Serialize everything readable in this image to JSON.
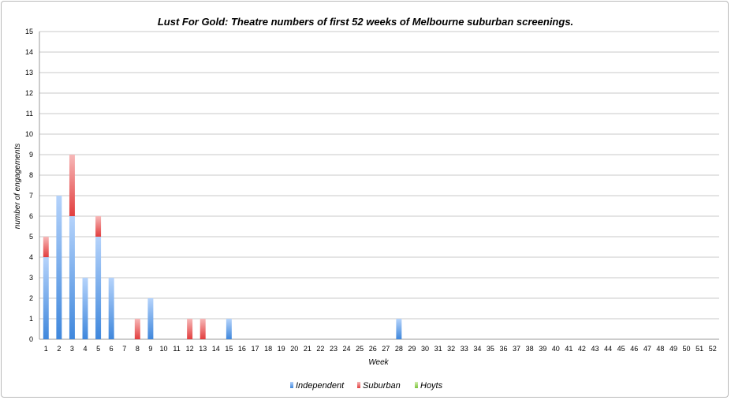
{
  "chart_data": {
    "type": "bar",
    "stacked": true,
    "title": "Lust For Gold: Theatre numbers of first 52 weeks of Melbourne suburban screenings.",
    "xlabel": "Week",
    "ylabel": "number of engagements",
    "ylim": [
      0,
      15
    ],
    "yticks": [
      0,
      1,
      2,
      3,
      4,
      5,
      6,
      7,
      8,
      9,
      10,
      11,
      12,
      13,
      14,
      15
    ],
    "grid": true,
    "legend_position": "bottom",
    "categories": [
      "1",
      "2",
      "3",
      "4",
      "5",
      "6",
      "7",
      "8",
      "9",
      "10",
      "11",
      "12",
      "13",
      "14",
      "15",
      "16",
      "17",
      "18",
      "19",
      "20",
      "21",
      "22",
      "23",
      "24",
      "25",
      "26",
      "27",
      "28",
      "29",
      "30",
      "31",
      "32",
      "33",
      "34",
      "35",
      "36",
      "37",
      "38",
      "39",
      "40",
      "41",
      "42",
      "43",
      "44",
      "45",
      "46",
      "47",
      "48",
      "49",
      "50",
      "51",
      "52"
    ],
    "series": [
      {
        "name": "Independent",
        "color": "#4a8fe0",
        "values": [
          4,
          7,
          6,
          3,
          5,
          3,
          0,
          0,
          2,
          0,
          0,
          0,
          0,
          0,
          1,
          0,
          0,
          0,
          0,
          0,
          0,
          0,
          0,
          0,
          0,
          0,
          0,
          1,
          0,
          0,
          0,
          0,
          0,
          0,
          0,
          0,
          0,
          0,
          0,
          0,
          0,
          0,
          0,
          0,
          0,
          0,
          0,
          0,
          0,
          0,
          0,
          0
        ]
      },
      {
        "name": "Suburban",
        "color": "#e84c4c",
        "values": [
          1,
          0,
          3,
          0,
          1,
          0,
          0,
          1,
          0,
          0,
          0,
          1,
          1,
          0,
          0,
          0,
          0,
          0,
          0,
          0,
          0,
          0,
          0,
          0,
          0,
          0,
          0,
          0,
          0,
          0,
          0,
          0,
          0,
          0,
          0,
          0,
          0,
          0,
          0,
          0,
          0,
          0,
          0,
          0,
          0,
          0,
          0,
          0,
          0,
          0,
          0,
          0
        ]
      },
      {
        "name": "Hoyts",
        "color": "#8ed04c",
        "values": [
          0,
          0,
          0,
          0,
          0,
          0,
          0,
          0,
          0,
          0,
          0,
          0,
          0,
          0,
          0,
          0,
          0,
          0,
          0,
          0,
          0,
          0,
          0,
          0,
          0,
          0,
          0,
          0,
          0,
          0,
          0,
          0,
          0,
          0,
          0,
          0,
          0,
          0,
          0,
          0,
          0,
          0,
          0,
          0,
          0,
          0,
          0,
          0,
          0,
          0,
          0,
          0
        ]
      }
    ]
  }
}
